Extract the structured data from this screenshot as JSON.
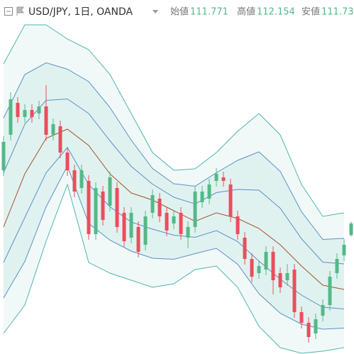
{
  "chart_data": {
    "type": "candlestick",
    "title": "USD/JPY, 1日, OANDA",
    "ohlc_labels": [
      "始値",
      "高値",
      "安値"
    ],
    "up_color": "#53b987",
    "down_color": "#eb4d5c",
    "ylim": [
      108.42,
      117.8
    ],
    "open": [
      113.6,
      114.6,
      115.5,
      115.1,
      115.3,
      115.2,
      115.4,
      114.6,
      114.84,
      114.1,
      113.6,
      113.1,
      113.3,
      111.8,
      113.0,
      112.6,
      113.1,
      112.4,
      111.7,
      112.0,
      111.5,
      112.4,
      112.8,
      112.4,
      112.1,
      112.4,
      111.7,
      112.0,
      112.7,
      112.8,
      113.3,
      113.4,
      113.2,
      112.3,
      111.7,
      111.1,
      110.7,
      110.8,
      111.3,
      110.7,
      110.5,
      110.8,
      109.6,
      109.3,
      109.0,
      109.5,
      109.8,
      110.7,
      111.2,
      111.771
    ],
    "high": [
      114.56,
      115.8,
      115.66,
      115.46,
      115.46,
      115.56,
      116.0,
      115.06,
      115.0,
      114.26,
      113.76,
      113.76,
      113.46,
      113.26,
      113.16,
      113.56,
      113.26,
      112.56,
      112.56,
      112.16,
      112.46,
      113.06,
      112.96,
      112.56,
      112.46,
      112.56,
      112.16,
      113.16,
      113.16,
      113.36,
      113.66,
      113.56,
      113.36,
      112.46,
      111.86,
      111.26,
      111.06,
      111.46,
      111.46,
      110.86,
      110.96,
      110.96,
      109.76,
      109.46,
      109.56,
      109.96,
      110.76,
      111.26,
      111.66,
      112.154
    ],
    "low": [
      113.44,
      114.44,
      114.94,
      114.94,
      114.94,
      115.04,
      114.44,
      114.44,
      113.94,
      113.44,
      112.84,
      112.94,
      111.64,
      111.64,
      112.04,
      112.44,
      111.84,
      111.44,
      111.54,
      111.14,
      111.34,
      112.24,
      112.14,
      111.74,
      111.94,
      111.64,
      111.4,
      111.84,
      112.54,
      112.64,
      113.14,
      113.14,
      112.14,
      111.64,
      110.94,
      110.44,
      110.54,
      110.64,
      110.1,
      110.14,
      110.34,
      109.44,
      109.14,
      108.74,
      108.84,
      109.34,
      109.64,
      110.54,
      111.04,
      111.73
    ],
    "close": [
      114.4,
      115.6,
      115.1,
      115.3,
      115.1,
      115.4,
      114.6,
      114.9,
      114.1,
      113.6,
      113.0,
      113.6,
      111.8,
      113.1,
      112.2,
      113.4,
      112.0,
      111.6,
      112.4,
      111.3,
      112.3,
      112.9,
      112.3,
      111.9,
      112.3,
      111.8,
      112.0,
      113.0,
      113.0,
      113.2,
      113.5,
      113.3,
      112.3,
      111.8,
      111.1,
      110.6,
      110.9,
      111.3,
      110.5,
      110.3,
      110.7,
      109.6,
      109.3,
      108.9,
      109.4,
      109.8,
      110.6,
      111.1,
      111.5,
      112.1
    ],
    "bands": {
      "x": [
        0,
        3,
        6,
        9,
        12,
        15,
        18,
        21,
        24,
        27,
        30,
        33,
        36,
        39,
        42,
        45,
        48
      ],
      "series": [
        {
          "color": "#4db6ac",
          "values": [
            116.6,
            117.7,
            117.7,
            117.3,
            117.0,
            116.3,
            115.2,
            114.1,
            113.6,
            113.64,
            114.1,
            114.7,
            115.2,
            114.6,
            113.2,
            112.3,
            112.4
          ]
        },
        {
          "color": "#5b8fc7",
          "values": [
            115.07,
            116.3,
            116.63,
            116.45,
            116.1,
            115.37,
            114.45,
            113.65,
            113.22,
            113.15,
            113.53,
            113.88,
            114.12,
            113.57,
            112.43,
            111.65,
            111.68
          ]
        },
        {
          "color": "#5b8fc7",
          "values": [
            113.53,
            114.9,
            115.57,
            115.61,
            115.2,
            114.43,
            113.71,
            113.21,
            112.84,
            112.65,
            112.97,
            113.06,
            113.04,
            112.53,
            111.67,
            111.01,
            110.96
          ]
        },
        {
          "color": "#a0522d",
          "values": [
            112.0,
            113.5,
            114.5,
            114.76,
            114.3,
            113.5,
            112.96,
            112.76,
            112.46,
            112.16,
            112.4,
            112.24,
            111.96,
            111.5,
            110.9,
            110.36,
            110.24
          ]
        },
        {
          "color": "#5b8fc7",
          "values": [
            111.0,
            112.27,
            113.53,
            114.24,
            113.2,
            112.57,
            112.14,
            111.94,
            111.77,
            111.71,
            111.9,
            111.59,
            111.04,
            110.53,
            110.08,
            109.74,
            109.69
          ]
        },
        {
          "color": "#5b8fc7",
          "values": [
            110.0,
            111.03,
            112.57,
            113.72,
            112.1,
            111.63,
            111.32,
            111.12,
            111.09,
            111.25,
            111.4,
            110.95,
            110.12,
            109.57,
            109.26,
            109.12,
            109.15
          ]
        },
        {
          "color": "#4db6ac",
          "values": [
            109.0,
            109.8,
            111.6,
            113.2,
            111.0,
            110.7,
            110.5,
            110.3,
            110.4,
            110.8,
            110.9,
            110.3,
            109.2,
            108.6,
            108.44,
            108.5,
            108.6
          ]
        }
      ]
    }
  }
}
